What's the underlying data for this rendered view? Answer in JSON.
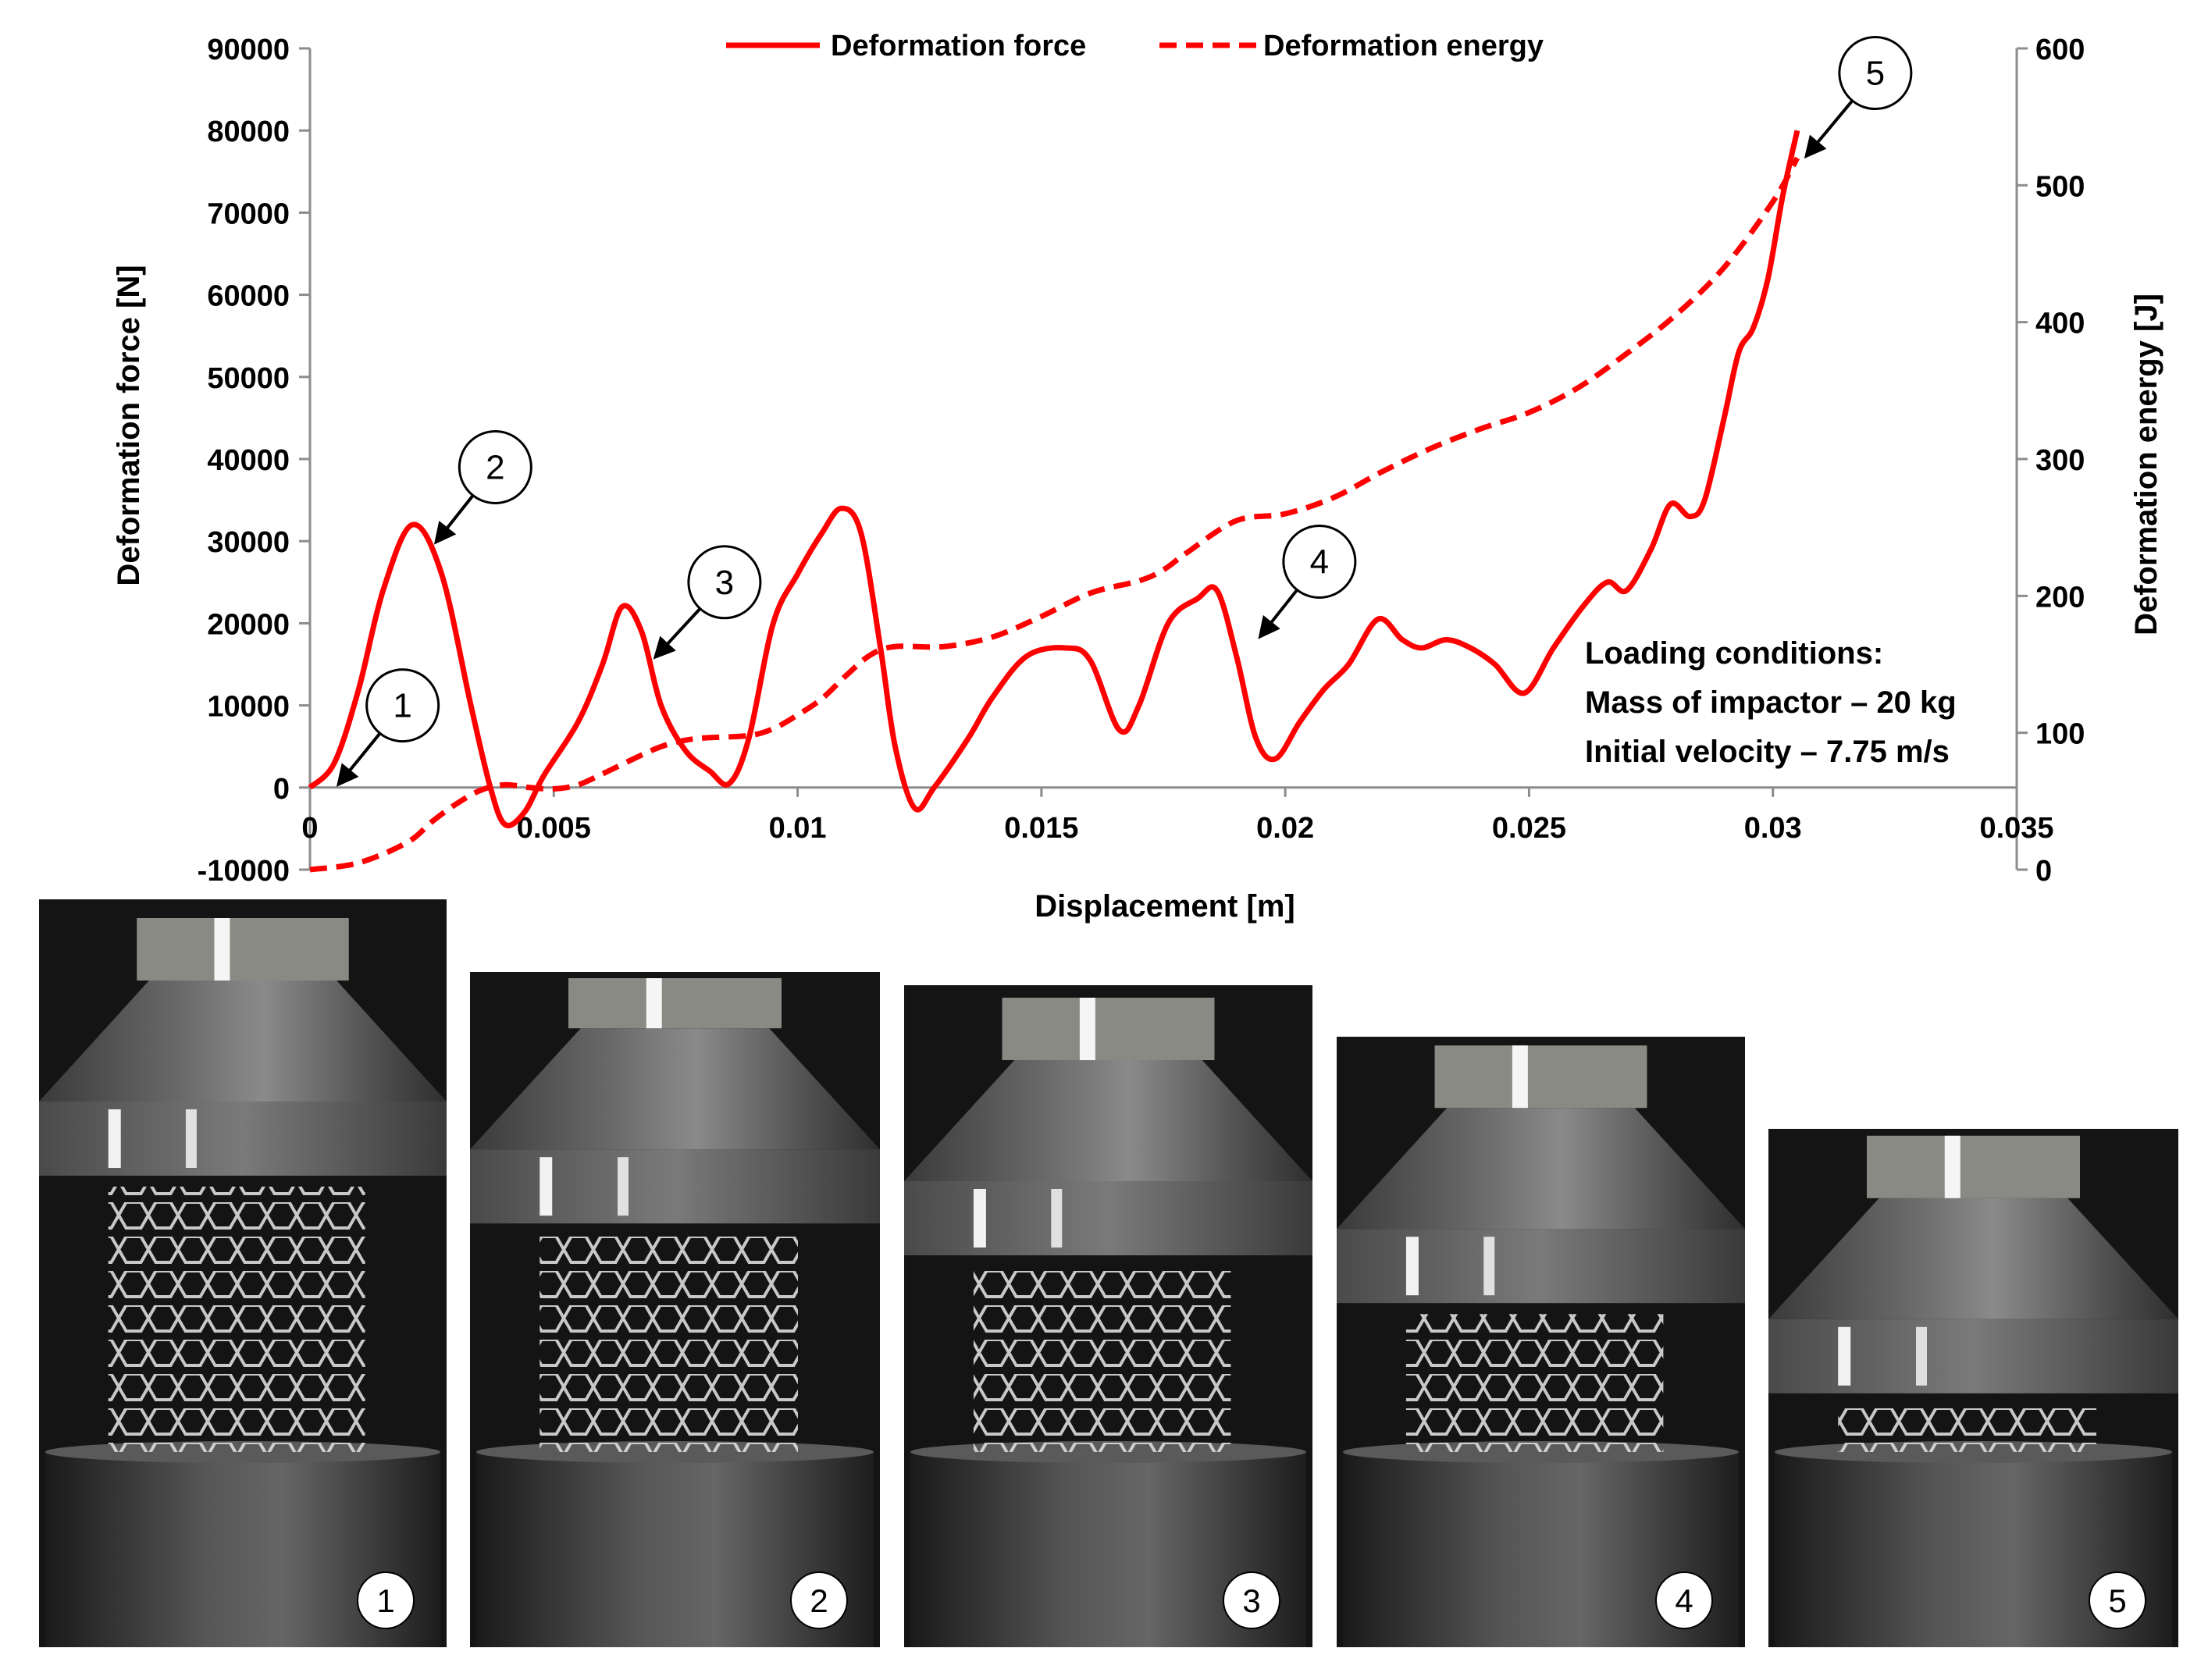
{
  "chart_data": {
    "type": "line",
    "xlabel": "Displacement [m]",
    "ylabel_left": "Deformation force [N]",
    "ylabel_right": "Deformation energy [J]",
    "xlim": [
      0,
      0.035
    ],
    "ylim_left": [
      -10000,
      90000
    ],
    "ylim_right": [
      0,
      600
    ],
    "x_ticks": [
      "0",
      "0.005",
      "0.01",
      "0.015",
      "0.02",
      "0.025",
      "0.03",
      "0.035"
    ],
    "x_tick_values": [
      0,
      0.005,
      0.01,
      0.015,
      0.02,
      0.025,
      0.03,
      0.035
    ],
    "y_left_ticks": [
      "-10000",
      "0",
      "10000",
      "20000",
      "30000",
      "40000",
      "50000",
      "60000",
      "70000",
      "80000",
      "90000"
    ],
    "y_left_tick_values": [
      -10000,
      0,
      10000,
      20000,
      30000,
      40000,
      50000,
      60000,
      70000,
      80000,
      90000
    ],
    "y_right_ticks": [
      "0",
      "100",
      "200",
      "300",
      "400",
      "500",
      "600"
    ],
    "y_right_tick_values": [
      0,
      100,
      200,
      300,
      400,
      500,
      600
    ],
    "grid": false,
    "legend_position": "top-center",
    "series": [
      {
        "name": "Deformation force",
        "axis": "left",
        "color": "#ff0000",
        "style": "solid",
        "points": [
          [
            0,
            0
          ],
          [
            0.0005,
            3000
          ],
          [
            0.001,
            12000
          ],
          [
            0.0015,
            24000
          ],
          [
            0.0021,
            32000
          ],
          [
            0.0027,
            26000
          ],
          [
            0.0033,
            10000
          ],
          [
            0.0037,
            0
          ],
          [
            0.004,
            -4500
          ],
          [
            0.0044,
            -3000
          ],
          [
            0.0048,
            1500
          ],
          [
            0.0055,
            8000
          ],
          [
            0.006,
            15000
          ],
          [
            0.0064,
            22000
          ],
          [
            0.0068,
            19000
          ],
          [
            0.0072,
            10000
          ],
          [
            0.0077,
            4500
          ],
          [
            0.0082,
            2000
          ],
          [
            0.0086,
            500
          ],
          [
            0.009,
            6000
          ],
          [
            0.0095,
            20000
          ],
          [
            0.01,
            26000
          ],
          [
            0.0105,
            31000
          ],
          [
            0.0109,
            34000
          ],
          [
            0.0113,
            31000
          ],
          [
            0.0117,
            17000
          ],
          [
            0.012,
            5000
          ],
          [
            0.0124,
            -2500
          ],
          [
            0.0128,
            0
          ],
          [
            0.0135,
            6000
          ],
          [
            0.014,
            11000
          ],
          [
            0.0147,
            16000
          ],
          [
            0.0155,
            17000
          ],
          [
            0.016,
            15500
          ],
          [
            0.0166,
            7000
          ],
          [
            0.017,
            10000
          ],
          [
            0.0176,
            20000
          ],
          [
            0.0182,
            23000
          ],
          [
            0.0186,
            24000
          ],
          [
            0.019,
            16000
          ],
          [
            0.0194,
            6000
          ],
          [
            0.0198,
            3500
          ],
          [
            0.0203,
            8000
          ],
          [
            0.0208,
            12000
          ],
          [
            0.0213,
            15000
          ],
          [
            0.0219,
            20500
          ],
          [
            0.0224,
            18000
          ],
          [
            0.0228,
            17000
          ],
          [
            0.0233,
            18000
          ],
          [
            0.0238,
            17000
          ],
          [
            0.0243,
            15000
          ],
          [
            0.0249,
            11500
          ],
          [
            0.0255,
            17000
          ],
          [
            0.0261,
            22000
          ],
          [
            0.0266,
            25000
          ],
          [
            0.027,
            24000
          ],
          [
            0.0275,
            29000
          ],
          [
            0.0279,
            34500
          ],
          [
            0.0283,
            33000
          ],
          [
            0.0286,
            35000
          ],
          [
            0.029,
            45000
          ],
          [
            0.0293,
            53000
          ],
          [
            0.0296,
            56000
          ],
          [
            0.0299,
            62000
          ],
          [
            0.0302,
            72000
          ],
          [
            0.0305,
            80000
          ]
        ]
      },
      {
        "name": "Deformation energy",
        "axis": "right",
        "color": "#ff0000",
        "style": "dashed",
        "points": [
          [
            0,
            0
          ],
          [
            0.001,
            5
          ],
          [
            0.002,
            20
          ],
          [
            0.0025,
            35
          ],
          [
            0.003,
            48
          ],
          [
            0.0035,
            58
          ],
          [
            0.004,
            62
          ],
          [
            0.0045,
            60
          ],
          [
            0.005,
            59
          ],
          [
            0.0055,
            62
          ],
          [
            0.006,
            70
          ],
          [
            0.007,
            87
          ],
          [
            0.0075,
            93
          ],
          [
            0.008,
            96
          ],
          [
            0.009,
            98
          ],
          [
            0.0095,
            103
          ],
          [
            0.01,
            113
          ],
          [
            0.0105,
            125
          ],
          [
            0.011,
            142
          ],
          [
            0.0115,
            157
          ],
          [
            0.012,
            163
          ],
          [
            0.013,
            163
          ],
          [
            0.014,
            170
          ],
          [
            0.015,
            185
          ],
          [
            0.016,
            202
          ],
          [
            0.017,
            211
          ],
          [
            0.0175,
            219
          ],
          [
            0.018,
            232
          ],
          [
            0.019,
            255
          ],
          [
            0.02,
            260
          ],
          [
            0.021,
            272
          ],
          [
            0.022,
            291
          ],
          [
            0.023,
            308
          ],
          [
            0.024,
            322
          ],
          [
            0.025,
            334
          ],
          [
            0.026,
            352
          ],
          [
            0.027,
            377
          ],
          [
            0.028,
            405
          ],
          [
            0.029,
            440
          ],
          [
            0.03,
            488
          ],
          [
            0.0305,
            520
          ]
        ]
      }
    ],
    "annotations": [
      {
        "label": "1",
        "text_x": 0.0019,
        "text_y": 10000,
        "arrow_x": 0.0006,
        "arrow_y": 500
      },
      {
        "label": "2",
        "text_x": 0.0038,
        "text_y": 39000,
        "arrow_x": 0.0026,
        "arrow_y": 30000
      },
      {
        "label": "3",
        "text_x": 0.0085,
        "text_y": 25000,
        "arrow_x": 0.0071,
        "arrow_y": 16000
      },
      {
        "label": "4",
        "text_x": 0.0207,
        "text_y": 27500,
        "arrow_x": 0.0195,
        "arrow_y": 18500
      },
      {
        "label": "5",
        "text_x": 0.0321,
        "text_y": 87000,
        "arrow_x": 0.0307,
        "arrow_y": 77000
      }
    ]
  },
  "loading_conditions": {
    "heading": "Loading conditions:",
    "mass": "Mass of impactor – 20 kg",
    "velocity": "Initial velocity – 7.75 m/s"
  },
  "photos": [
    {
      "label": "1"
    },
    {
      "label": "2"
    },
    {
      "label": "3"
    },
    {
      "label": "4"
    },
    {
      "label": "5"
    }
  ]
}
